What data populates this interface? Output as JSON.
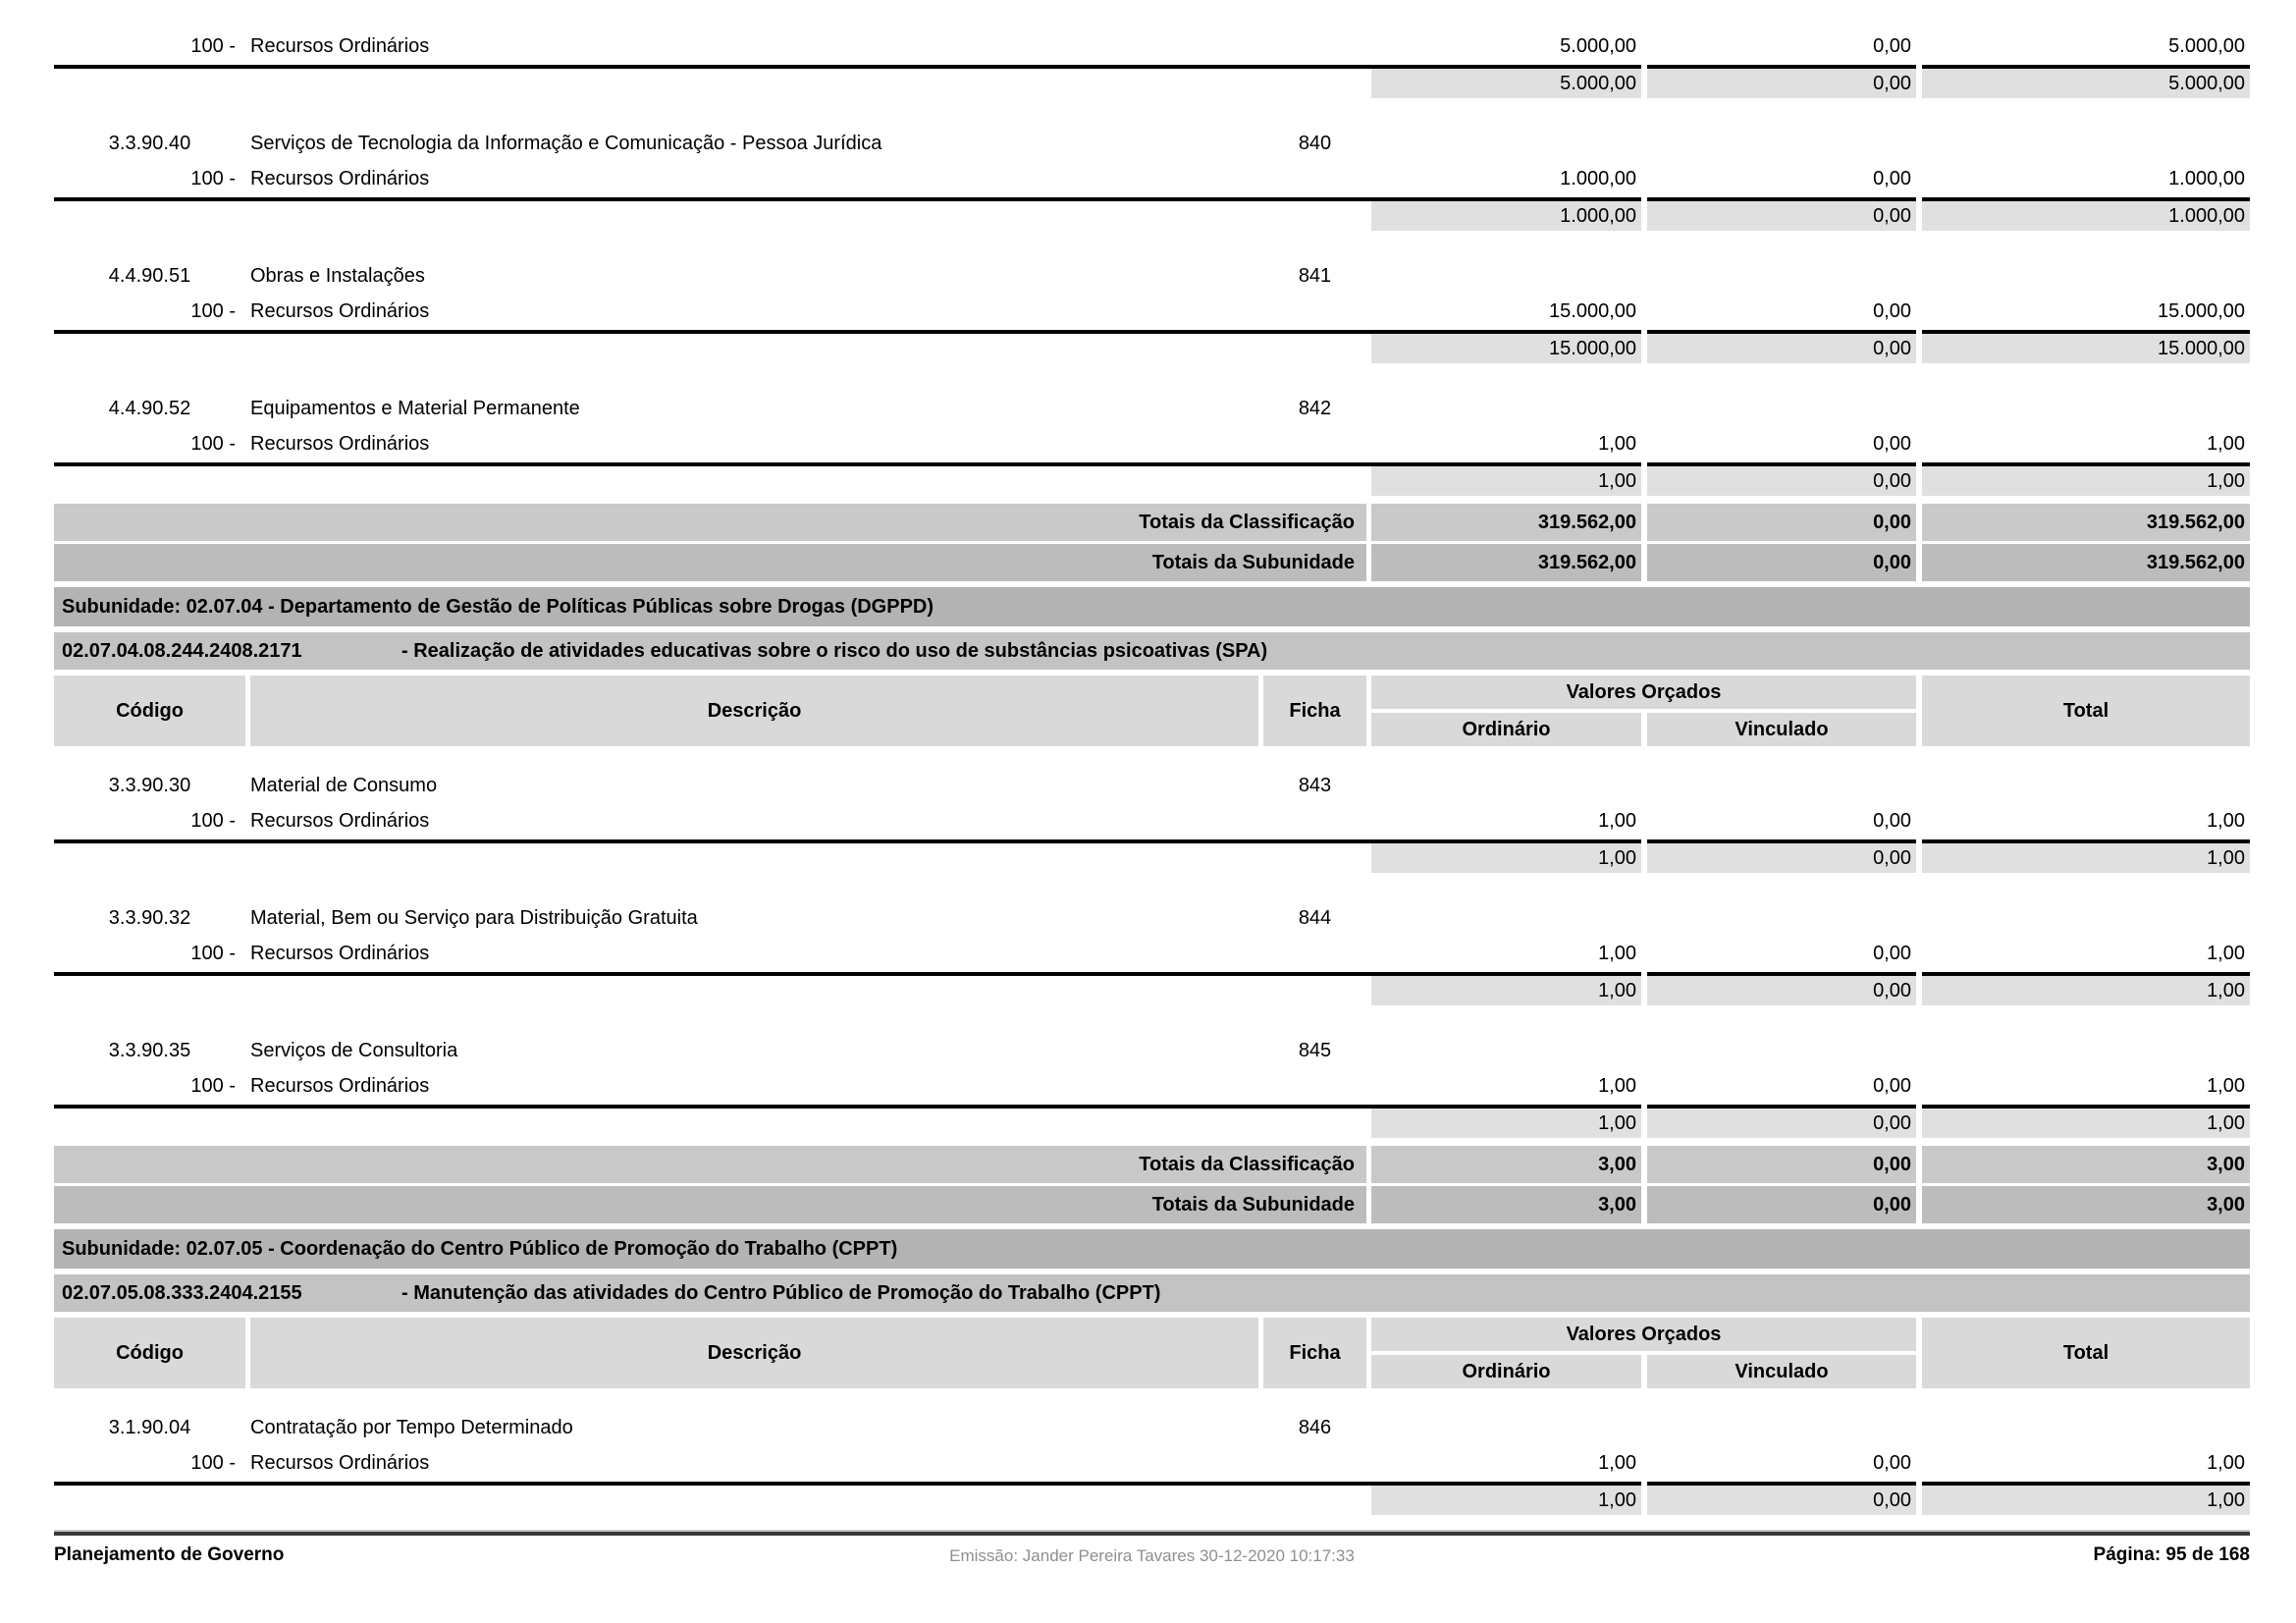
{
  "document": {
    "system_name": "Planejamento de Governo",
    "footer": {
      "left": "Planejamento de Governo",
      "center": "Emissão: Jander Pereira Tavares 30-12-2020 10:17:33",
      "right": "Página: 95 de 168"
    }
  },
  "table_header": {
    "codigo": "Código",
    "descricao": "Descrição",
    "ficha": "Ficha",
    "valores_orcados": "Valores Orçados",
    "ordinario": "Ordinário",
    "vinculado": "Vinculado",
    "total": "Total"
  },
  "colors": {
    "subtotal_bg": "#e0e0e0",
    "totals_classificacao_bg": "#c9c9c9",
    "totals_subunidade_bg": "#bcbcbc",
    "subunidade_band_bg": "#b3b3b3",
    "action_band_bg": "#c3c3c3",
    "header_cell_bg": "#d9d9d9"
  },
  "blocks": [
    {
      "type": "resource",
      "resource_code": "100 -",
      "resource_name": "Recursos Ordinários",
      "ordinario": "5.000,00",
      "vinculado": "0,00",
      "total": "5.000,00"
    },
    {
      "type": "subtotal",
      "ordinario": "5.000,00",
      "vinculado": "0,00",
      "total": "5.000,00"
    },
    {
      "type": "classification",
      "code": "3.3.90.40",
      "description": "Serviços de Tecnologia da Informação e Comunicação - Pessoa Jurídica",
      "ficha": "840"
    },
    {
      "type": "resource",
      "resource_code": "100 -",
      "resource_name": "Recursos Ordinários",
      "ordinario": "1.000,00",
      "vinculado": "0,00",
      "total": "1.000,00"
    },
    {
      "type": "subtotal",
      "ordinario": "1.000,00",
      "vinculado": "0,00",
      "total": "1.000,00"
    },
    {
      "type": "classification",
      "code": "4.4.90.51",
      "description": "Obras e Instalações",
      "ficha": "841"
    },
    {
      "type": "resource",
      "resource_code": "100 -",
      "resource_name": "Recursos Ordinários",
      "ordinario": "15.000,00",
      "vinculado": "0,00",
      "total": "15.000,00"
    },
    {
      "type": "subtotal",
      "ordinario": "15.000,00",
      "vinculado": "0,00",
      "total": "15.000,00"
    },
    {
      "type": "classification",
      "code": "4.4.90.52",
      "description": "Equipamentos e Material Permanente",
      "ficha": "842"
    },
    {
      "type": "resource",
      "resource_code": "100 -",
      "resource_name": "Recursos Ordinários",
      "ordinario": "1,00",
      "vinculado": "0,00",
      "total": "1,00"
    },
    {
      "type": "subtotal",
      "ordinario": "1,00",
      "vinculado": "0,00",
      "total": "1,00"
    },
    {
      "type": "totals",
      "variant": "classificacao",
      "label": "Totais da Classificação",
      "ordinario": "319.562,00",
      "vinculado": "0,00",
      "total": "319.562,00"
    },
    {
      "type": "totals",
      "variant": "subunidade",
      "label": "Totais da Subunidade",
      "ordinario": "319.562,00",
      "vinculado": "0,00",
      "total": "319.562,00"
    },
    {
      "type": "subunidade_band",
      "text": "Subunidade: 02.07.04 - Departamento de Gestão de Políticas Públicas sobre Drogas (DGPPD)"
    },
    {
      "type": "action_band",
      "code": "02.07.04.08.244.2408.2171",
      "title": "- Realização de atividades educativas sobre o risco do uso de substâncias psicoativas (SPA)"
    },
    {
      "type": "header"
    },
    {
      "type": "classification",
      "code": "3.3.90.30",
      "description": "Material de Consumo",
      "ficha": "843"
    },
    {
      "type": "resource",
      "resource_code": "100 -",
      "resource_name": "Recursos Ordinários",
      "ordinario": "1,00",
      "vinculado": "0,00",
      "total": "1,00"
    },
    {
      "type": "subtotal",
      "ordinario": "1,00",
      "vinculado": "0,00",
      "total": "1,00"
    },
    {
      "type": "classification",
      "code": "3.3.90.32",
      "description": "Material, Bem ou Serviço para Distribuição Gratuita",
      "ficha": "844"
    },
    {
      "type": "resource",
      "resource_code": "100 -",
      "resource_name": "Recursos Ordinários",
      "ordinario": "1,00",
      "vinculado": "0,00",
      "total": "1,00"
    },
    {
      "type": "subtotal",
      "ordinario": "1,00",
      "vinculado": "0,00",
      "total": "1,00"
    },
    {
      "type": "classification",
      "code": "3.3.90.35",
      "description": "Serviços de Consultoria",
      "ficha": "845"
    },
    {
      "type": "resource",
      "resource_code": "100 -",
      "resource_name": "Recursos Ordinários",
      "ordinario": "1,00",
      "vinculado": "0,00",
      "total": "1,00"
    },
    {
      "type": "subtotal",
      "ordinario": "1,00",
      "vinculado": "0,00",
      "total": "1,00"
    },
    {
      "type": "totals",
      "variant": "classificacao",
      "label": "Totais da Classificação",
      "ordinario": "3,00",
      "vinculado": "0,00",
      "total": "3,00"
    },
    {
      "type": "totals",
      "variant": "subunidade",
      "label": "Totais da Subunidade",
      "ordinario": "3,00",
      "vinculado": "0,00",
      "total": "3,00"
    },
    {
      "type": "subunidade_band",
      "text": "Subunidade: 02.07.05 - Coordenação do Centro Público de Promoção do Trabalho (CPPT)"
    },
    {
      "type": "action_band",
      "code": "02.07.05.08.333.2404.2155",
      "title": "- Manutenção das atividades do Centro Público de Promoção do Trabalho (CPPT)"
    },
    {
      "type": "header"
    },
    {
      "type": "classification",
      "code": "3.1.90.04",
      "description": "Contratação por Tempo Determinado",
      "ficha": "846"
    },
    {
      "type": "resource",
      "resource_code": "100 -",
      "resource_name": "Recursos Ordinários",
      "ordinario": "1,00",
      "vinculado": "0,00",
      "total": "1,00"
    },
    {
      "type": "subtotal",
      "ordinario": "1,00",
      "vinculado": "0,00",
      "total": "1,00"
    }
  ]
}
